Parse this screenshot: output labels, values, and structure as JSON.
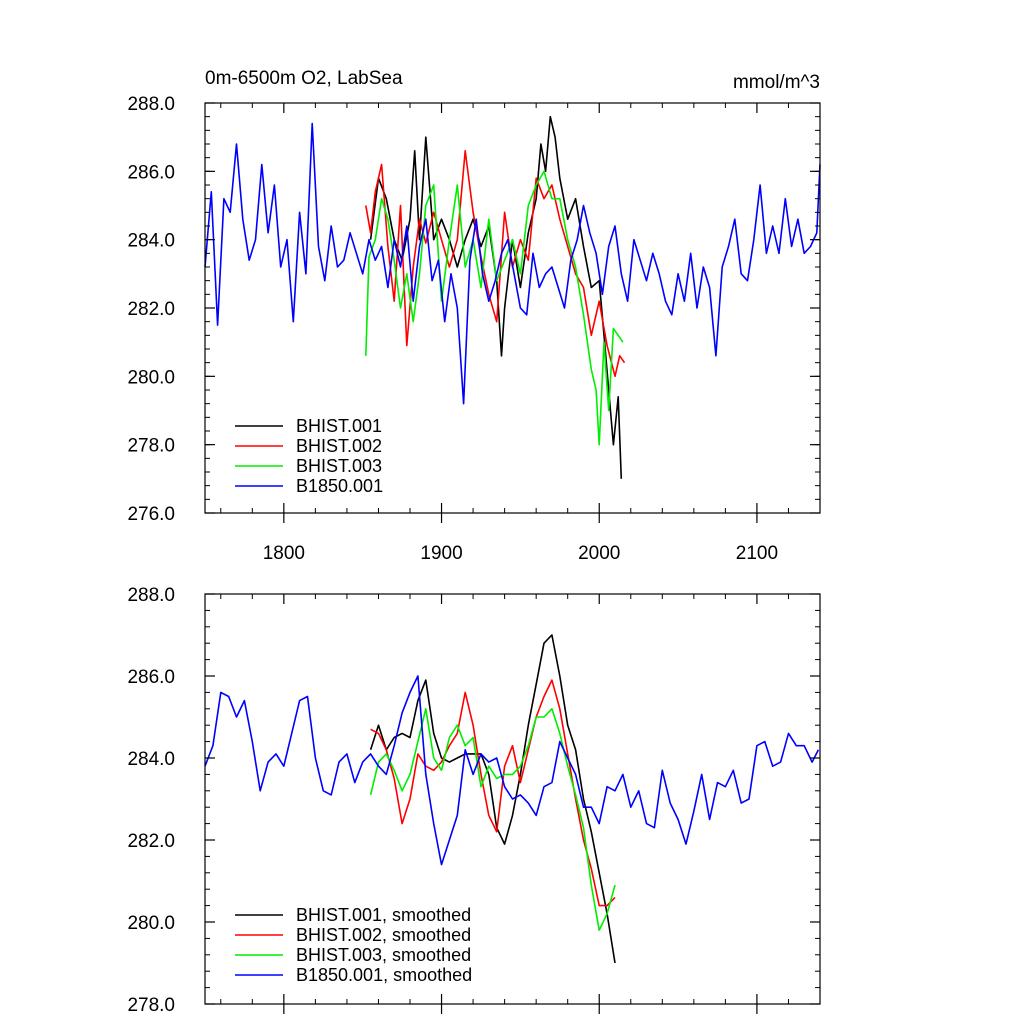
{
  "chart_data": [
    {
      "type": "line",
      "title": "0m-6500m O2, LabSea",
      "units": "mmol/m^3",
      "xlabel": "",
      "ylabel": "",
      "xlim": [
        1750,
        2140
      ],
      "ylim": [
        276.0,
        288.0
      ],
      "xticks": [
        1800,
        1900,
        2000,
        2100
      ],
      "yticks": [
        276.0,
        278.0,
        280.0,
        282.0,
        284.0,
        286.0,
        288.0
      ],
      "xtick_labels": [
        "1800",
        "1900",
        "2000",
        "2100"
      ],
      "ytick_labels": [
        "276.0",
        "278.0",
        "280.0",
        "282.0",
        "284.0",
        "286.0",
        "288.0"
      ],
      "grid": false,
      "legend": "bottom-left",
      "series": [
        {
          "name": "BHIST.001",
          "color": "#000000",
          "x": [
            1855,
            1860,
            1865,
            1870,
            1875,
            1880,
            1883,
            1886,
            1890,
            1895,
            1900,
            1905,
            1910,
            1915,
            1920,
            1925,
            1930,
            1935,
            1938,
            1940,
            1945,
            1950,
            1955,
            1960,
            1963,
            1966,
            1969,
            1972,
            1975,
            1980,
            1985,
            1990,
            1995,
            2000,
            2003,
            2006,
            2009,
            2012,
            2014
          ],
          "y": [
            284.0,
            285.8,
            285.2,
            284.0,
            283.4,
            284.6,
            286.6,
            284.0,
            287.0,
            284.0,
            284.6,
            284.0,
            283.2,
            284.0,
            284.6,
            283.8,
            284.4,
            282.8,
            280.6,
            282.0,
            284.0,
            282.6,
            284.2,
            285.2,
            286.8,
            286.0,
            287.6,
            287.0,
            285.8,
            284.6,
            285.2,
            283.8,
            282.6,
            282.8,
            281.2,
            279.6,
            278.0,
            279.4,
            277.0
          ]
        },
        {
          "name": "BHIST.002",
          "color": "#ff0000",
          "x": [
            1852,
            1855,
            1858,
            1862,
            1866,
            1870,
            1874,
            1878,
            1882,
            1886,
            1890,
            1895,
            1900,
            1905,
            1910,
            1915,
            1920,
            1925,
            1930,
            1935,
            1940,
            1945,
            1950,
            1955,
            1960,
            1965,
            1970,
            1975,
            1980,
            1985,
            1990,
            1995,
            2000,
            2005,
            2010,
            2013,
            2016
          ],
          "y": [
            285.0,
            284.2,
            285.4,
            286.2,
            283.8,
            282.2,
            285.0,
            280.9,
            283.2,
            284.6,
            283.9,
            284.8,
            284.0,
            283.2,
            284.0,
            286.6,
            284.8,
            283.5,
            282.4,
            281.6,
            284.8,
            283.2,
            284.0,
            283.4,
            285.8,
            285.2,
            285.6,
            284.6,
            283.8,
            283.0,
            282.6,
            281.2,
            282.2,
            280.9,
            280.0,
            280.6,
            280.4
          ]
        },
        {
          "name": "BHIST.003",
          "color": "#00ee00",
          "x": [
            1852,
            1854,
            1858,
            1862,
            1866,
            1870,
            1874,
            1878,
            1882,
            1886,
            1890,
            1895,
            1900,
            1905,
            1910,
            1915,
            1920,
            1925,
            1930,
            1935,
            1940,
            1945,
            1950,
            1955,
            1960,
            1965,
            1970,
            1975,
            1980,
            1985,
            1990,
            1995,
            1998,
            2000,
            2003,
            2006,
            2009,
            2012,
            2015
          ],
          "y": [
            280.6,
            283.5,
            284.0,
            285.2,
            284.6,
            283.4,
            282.0,
            283.0,
            281.6,
            283.0,
            285.0,
            285.6,
            282.2,
            284.0,
            285.6,
            283.2,
            284.0,
            282.6,
            284.6,
            282.8,
            283.4,
            284.0,
            283.0,
            285.0,
            285.6,
            286.0,
            285.2,
            285.2,
            284.0,
            283.2,
            281.8,
            280.2,
            279.6,
            278.0,
            281.0,
            279.0,
            281.4,
            281.2,
            281.0
          ]
        },
        {
          "name": "B1850.001",
          "color": "#0000ff",
          "x": [
            1750,
            1754,
            1758,
            1762,
            1766,
            1770,
            1774,
            1778,
            1782,
            1786,
            1790,
            1794,
            1798,
            1802,
            1806,
            1810,
            1814,
            1818,
            1822,
            1826,
            1830,
            1834,
            1838,
            1842,
            1846,
            1850,
            1854,
            1858,
            1862,
            1866,
            1870,
            1874,
            1878,
            1882,
            1886,
            1890,
            1894,
            1898,
            1902,
            1906,
            1910,
            1914,
            1918,
            1922,
            1926,
            1930,
            1934,
            1938,
            1942,
            1946,
            1950,
            1954,
            1958,
            1962,
            1966,
            1970,
            1974,
            1978,
            1982,
            1986,
            1990,
            1994,
            1998,
            2002,
            2006,
            2010,
            2014,
            2018,
            2022,
            2026,
            2030,
            2034,
            2038,
            2042,
            2046,
            2050,
            2054,
            2058,
            2062,
            2066,
            2070,
            2074,
            2078,
            2082,
            2086,
            2090,
            2094,
            2098,
            2102,
            2106,
            2110,
            2114,
            2118,
            2122,
            2126,
            2130,
            2134,
            2138,
            2140
          ],
          "y": [
            283.2,
            285.4,
            281.5,
            285.2,
            284.8,
            286.8,
            284.6,
            283.4,
            284.0,
            286.2,
            284.2,
            285.6,
            283.2,
            284.0,
            281.6,
            284.8,
            283.0,
            287.4,
            283.8,
            282.8,
            284.4,
            283.2,
            283.4,
            284.2,
            283.6,
            283.0,
            284.0,
            283.4,
            283.8,
            282.6,
            284.0,
            283.2,
            284.4,
            282.2,
            283.8,
            284.6,
            282.8,
            283.4,
            281.6,
            283.0,
            282.0,
            279.2,
            283.4,
            284.6,
            283.0,
            282.2,
            282.8,
            283.6,
            284.0,
            283.0,
            282.0,
            281.8,
            283.6,
            282.6,
            283.0,
            283.2,
            282.6,
            282.0,
            283.4,
            284.0,
            285.0,
            284.2,
            283.6,
            282.4,
            283.8,
            284.4,
            283.0,
            282.2,
            284.0,
            283.4,
            282.8,
            283.6,
            283.0,
            282.2,
            281.8,
            283.0,
            282.2,
            283.6,
            282.0,
            283.2,
            282.6,
            280.6,
            283.2,
            283.8,
            284.6,
            283.0,
            282.8,
            284.0,
            285.6,
            283.6,
            284.4,
            283.6,
            285.2,
            283.8,
            284.6,
            283.6,
            283.8,
            284.2,
            286.2
          ]
        }
      ]
    },
    {
      "type": "line",
      "title": "",
      "xlabel": "",
      "ylabel": "",
      "xlim": [
        1750,
        2140
      ],
      "ylim": [
        278.0,
        288.0
      ],
      "xticks": [
        1800,
        1900,
        2000,
        2100
      ],
      "yticks": [
        278.0,
        280.0,
        282.0,
        284.0,
        286.0,
        288.0
      ],
      "xtick_labels": [],
      "ytick_labels": [
        "278.0",
        "280.0",
        "282.0",
        "284.0",
        "286.0",
        "288.0"
      ],
      "grid": false,
      "legend": "bottom-left",
      "series": [
        {
          "name": "BHIST.001, smoothed",
          "color": "#000000",
          "x": [
            1855,
            1860,
            1865,
            1870,
            1875,
            1880,
            1885,
            1890,
            1895,
            1900,
            1905,
            1910,
            1915,
            1920,
            1925,
            1930,
            1935,
            1940,
            1945,
            1950,
            1955,
            1960,
            1965,
            1970,
            1975,
            1980,
            1985,
            1990,
            1995,
            2000,
            2005,
            2010
          ],
          "y": [
            284.2,
            284.8,
            284.2,
            284.5,
            284.6,
            284.5,
            285.4,
            285.9,
            284.6,
            284.0,
            283.9,
            284.0,
            284.1,
            284.1,
            284.1,
            283.6,
            282.3,
            281.9,
            282.6,
            283.6,
            284.8,
            285.8,
            286.8,
            287.0,
            286.0,
            284.8,
            284.2,
            283.0,
            282.2,
            281.2,
            280.2,
            279.0
          ]
        },
        {
          "name": "BHIST.002, smoothed",
          "color": "#ff0000",
          "x": [
            1855,
            1860,
            1865,
            1870,
            1875,
            1880,
            1885,
            1890,
            1895,
            1900,
            1905,
            1910,
            1915,
            1920,
            1925,
            1930,
            1935,
            1940,
            1945,
            1950,
            1955,
            1960,
            1965,
            1970,
            1975,
            1980,
            1985,
            1990,
            1995,
            2000,
            2005,
            2010
          ],
          "y": [
            284.7,
            284.6,
            284.2,
            283.5,
            282.4,
            283.0,
            284.1,
            283.8,
            283.7,
            283.9,
            284.3,
            284.6,
            285.6,
            284.8,
            283.6,
            282.6,
            282.2,
            283.8,
            284.3,
            283.4,
            284.2,
            285.0,
            285.5,
            285.9,
            285.2,
            284.1,
            283.0,
            282.0,
            281.3,
            280.4,
            280.4,
            280.6
          ]
        },
        {
          "name": "BHIST.003, smoothed",
          "color": "#00ee00",
          "x": [
            1855,
            1860,
            1865,
            1870,
            1875,
            1880,
            1885,
            1890,
            1895,
            1900,
            1905,
            1910,
            1915,
            1920,
            1925,
            1930,
            1935,
            1940,
            1945,
            1950,
            1955,
            1960,
            1965,
            1970,
            1975,
            1980,
            1985,
            1990,
            1995,
            2000,
            2005,
            2010
          ],
          "y": [
            283.1,
            283.9,
            284.1,
            283.7,
            283.2,
            283.6,
            284.4,
            285.2,
            284.0,
            283.7,
            284.5,
            284.8,
            284.3,
            284.5,
            283.3,
            283.8,
            283.5,
            283.6,
            283.6,
            283.8,
            284.3,
            285.0,
            285.0,
            285.2,
            284.6,
            283.8,
            283.1,
            282.3,
            280.9,
            279.8,
            280.2,
            280.9
          ]
        },
        {
          "name": "B1850.001, smoothed",
          "color": "#0000ff",
          "x": [
            1750,
            1755,
            1760,
            1765,
            1770,
            1775,
            1780,
            1785,
            1790,
            1795,
            1800,
            1805,
            1810,
            1815,
            1820,
            1825,
            1830,
            1835,
            1840,
            1845,
            1850,
            1855,
            1860,
            1865,
            1870,
            1875,
            1880,
            1885,
            1890,
            1895,
            1900,
            1905,
            1910,
            1915,
            1920,
            1925,
            1930,
            1935,
            1940,
            1945,
            1950,
            1955,
            1960,
            1965,
            1970,
            1975,
            1980,
            1985,
            1990,
            1995,
            2000,
            2005,
            2010,
            2015,
            2020,
            2025,
            2030,
            2035,
            2040,
            2045,
            2050,
            2055,
            2060,
            2065,
            2070,
            2075,
            2080,
            2085,
            2090,
            2095,
            2100,
            2105,
            2110,
            2115,
            2120,
            2125,
            2130,
            2135,
            2139
          ],
          "y": [
            283.8,
            284.3,
            285.6,
            285.5,
            285.0,
            285.4,
            284.4,
            283.2,
            283.9,
            284.1,
            283.8,
            284.6,
            285.4,
            285.5,
            284.0,
            283.2,
            283.1,
            283.9,
            284.1,
            283.4,
            283.9,
            284.1,
            283.8,
            283.6,
            284.3,
            285.1,
            285.6,
            286.0,
            283.6,
            282.4,
            281.4,
            282.0,
            282.6,
            284.2,
            283.6,
            284.1,
            283.9,
            284.0,
            283.3,
            283.0,
            283.1,
            282.9,
            282.6,
            283.3,
            283.4,
            284.4,
            284.0,
            283.6,
            282.8,
            282.8,
            282.4,
            283.3,
            283.2,
            283.6,
            282.8,
            283.2,
            282.4,
            282.3,
            283.7,
            282.9,
            282.5,
            281.9,
            282.7,
            283.6,
            282.5,
            283.4,
            283.3,
            283.7,
            282.9,
            283.0,
            284.3,
            284.4,
            283.8,
            283.9,
            284.6,
            284.3,
            284.3,
            283.9,
            284.2
          ]
        }
      ]
    }
  ]
}
